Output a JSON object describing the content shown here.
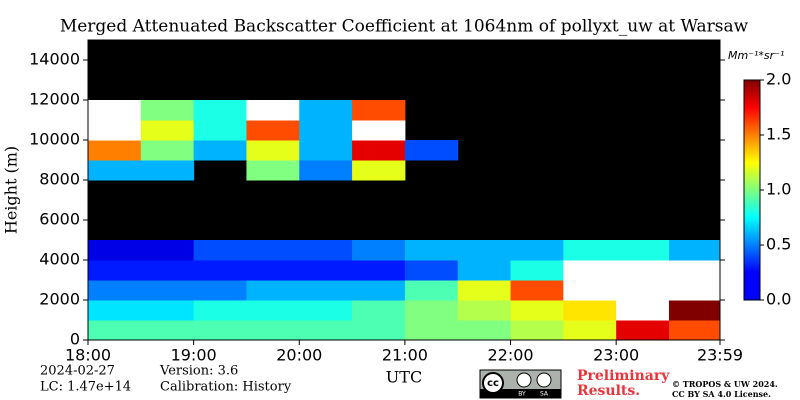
{
  "chart_data": {
    "type": "heatmap",
    "title": "Merged Attenuated Backscatter Coefficient at 1064nm of pollyxt_uw at Warsaw",
    "ylabel": "Height (m)",
    "xlabel": "UTC",
    "colorbar_label": "Mm⁻¹*sr⁻¹",
    "x_bins": [
      18,
      18.5,
      19,
      19.5,
      20,
      20.5,
      21,
      21.5,
      22,
      22.5,
      23,
      23.5,
      24
    ],
    "y_bins": [
      0,
      1000,
      2000,
      3000,
      4000,
      5000,
      6000,
      7000,
      8000,
      9000,
      10000,
      11000,
      12000,
      13000,
      14000,
      15000
    ],
    "values": [
      [
        0.9,
        0.9,
        0.9,
        0.9,
        0.9,
        0.9,
        1.0,
        1.0,
        1.1,
        1.2,
        1.8,
        1.6
      ],
      [
        0.7,
        0.7,
        0.8,
        0.8,
        0.8,
        0.9,
        1.0,
        1.1,
        1.2,
        1.3,
        2.2,
        2.0
      ],
      [
        0.5,
        0.5,
        0.5,
        0.6,
        0.6,
        0.6,
        0.9,
        1.2,
        1.6,
        2.2,
        2.2,
        2.2
      ],
      [
        0.3,
        0.3,
        0.3,
        0.3,
        0.3,
        0.3,
        0.4,
        0.6,
        0.8,
        2.2,
        2.2,
        2.2
      ],
      [
        0.2,
        0.2,
        0.4,
        0.4,
        0.4,
        0.5,
        0.6,
        0.6,
        0.6,
        0.8,
        0.8,
        0.6
      ],
      [
        null,
        null,
        null,
        null,
        null,
        null,
        null,
        null,
        null,
        null,
        null,
        null
      ],
      [
        null,
        null,
        null,
        null,
        null,
        null,
        null,
        null,
        null,
        null,
        null,
        null
      ],
      [
        null,
        null,
        null,
        null,
        null,
        null,
        null,
        null,
        null,
        null,
        null,
        null
      ],
      [
        0.6,
        0.6,
        null,
        1.0,
        0.5,
        1.2,
        null,
        null,
        null,
        null,
        null,
        null
      ],
      [
        1.5,
        1.0,
        0.6,
        1.2,
        0.6,
        1.8,
        0.4,
        null,
        null,
        null,
        null,
        null
      ],
      [
        2.2,
        1.2,
        0.8,
        1.6,
        0.6,
        2.2,
        null,
        null,
        null,
        null,
        null,
        null
      ],
      [
        2.2,
        1.0,
        0.8,
        2.2,
        0.6,
        1.6,
        null,
        null,
        null,
        null,
        null,
        null
      ],
      [
        null,
        null,
        null,
        null,
        null,
        null,
        null,
        null,
        null,
        null,
        null,
        null
      ],
      [
        null,
        null,
        null,
        null,
        null,
        null,
        null,
        null,
        null,
        null,
        null,
        null
      ],
      [
        null,
        null,
        null,
        null,
        null,
        null,
        null,
        null,
        null,
        null,
        null,
        null
      ]
    ],
    "xlim": [
      18,
      23.983
    ],
    "xticks": [
      {
        "value": 18,
        "label": "18:00"
      },
      {
        "value": 19,
        "label": "19:00"
      },
      {
        "value": 20,
        "label": "20:00"
      },
      {
        "value": 21,
        "label": "21:00"
      },
      {
        "value": 22,
        "label": "22:00"
      },
      {
        "value": 23,
        "label": "23:00"
      },
      {
        "value": 23.983,
        "label": "23:59"
      }
    ],
    "ylim": [
      0,
      15000
    ],
    "yticks": [
      0,
      2000,
      4000,
      6000,
      8000,
      10000,
      12000,
      14000
    ],
    "clim": [
      0,
      2
    ],
    "cticks": [
      {
        "value": 0,
        "label": "0.0"
      },
      {
        "value": 0.5,
        "label": "0.5"
      },
      {
        "value": 1,
        "label": "1.0"
      },
      {
        "value": 1.5,
        "label": "1.5"
      },
      {
        "value": 2,
        "label": "2.0"
      }
    ],
    "colormap": "jet",
    "over_color": "#ffffff",
    "missing_color": "#000000"
  },
  "footer": {
    "date": "2024-02-27",
    "lc": "LC: 1.47e+14",
    "version": "Version: 3.6",
    "calibration": "Calibration: History",
    "preliminary": [
      "Preliminary",
      "Results."
    ],
    "badge": [
      "cc",
      "BY",
      "SA"
    ],
    "copyright": [
      "© TROPOS & UW 2024.",
      "CC BY SA 4.0 License."
    ]
  }
}
